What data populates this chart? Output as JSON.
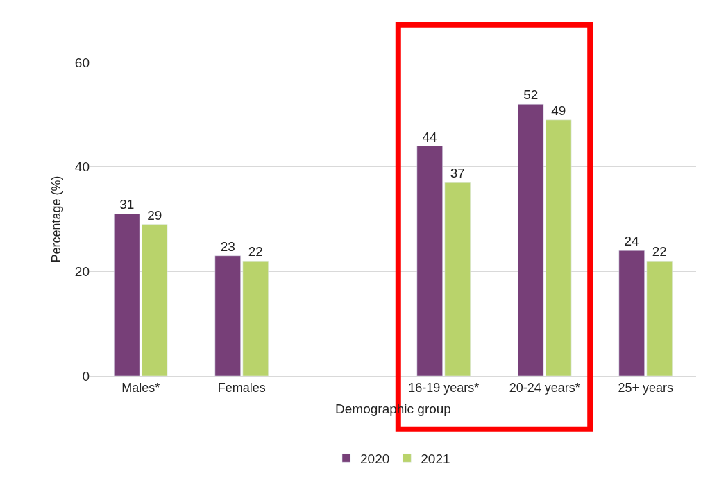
{
  "chart_data": {
    "type": "bar",
    "xlabel": "Demographic group",
    "ylabel": "Percentage (%)",
    "categories": [
      "Males*",
      "Females",
      null,
      "16-19 years*",
      "20-24 years*",
      "25+ years"
    ],
    "series": [
      {
        "name": "2020",
        "color": "#773f78",
        "values": [
          31,
          23,
          null,
          44,
          52,
          24
        ]
      },
      {
        "name": "2021",
        "color": "#b9d36b",
        "values": [
          29,
          22,
          null,
          37,
          49,
          22
        ]
      }
    ],
    "ylim": [
      0,
      60
    ],
    "yticks": [
      0,
      20,
      40,
      60
    ],
    "grid": "y",
    "legend": "bottom",
    "data_labels": true
  }
}
